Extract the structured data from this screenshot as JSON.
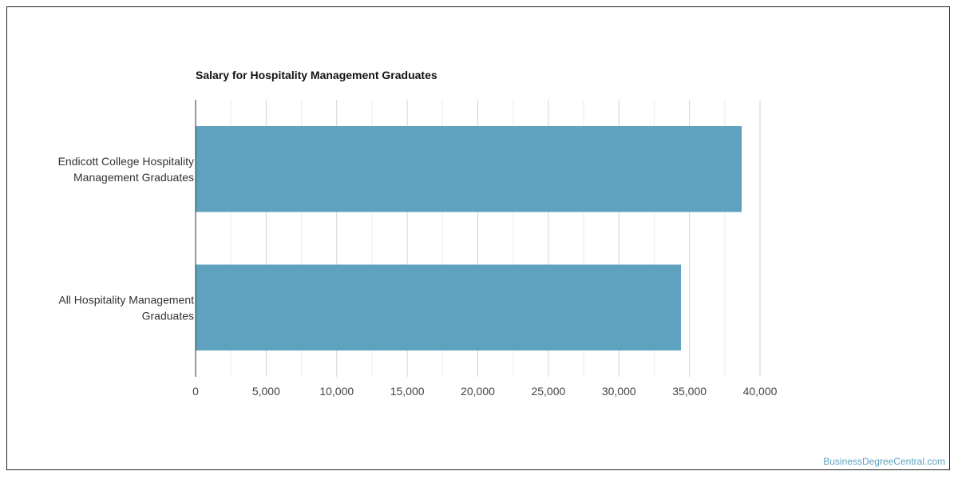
{
  "chart_data": {
    "type": "bar",
    "orientation": "horizontal",
    "title": "Salary for Hospitality Management Graduates",
    "categories": [
      [
        "Endicott College Hospitality",
        "Management Graduates"
      ],
      [
        "All Hospitality Management",
        "Graduates"
      ]
    ],
    "values": [
      38700,
      34400
    ],
    "xlim": [
      0,
      40000
    ],
    "xticks": [
      0,
      5000,
      10000,
      15000,
      20000,
      25000,
      30000,
      35000,
      40000
    ],
    "tick_labels": [
      "0",
      "5,000",
      "10,000",
      "15,000",
      "20,000",
      "25,000",
      "30,000",
      "35,000",
      "40,000"
    ],
    "grid": true,
    "bar_color": "#5ea2bf"
  },
  "credit": "BusinessDegreeCentral.com",
  "credit_color": "#5ea2bf"
}
